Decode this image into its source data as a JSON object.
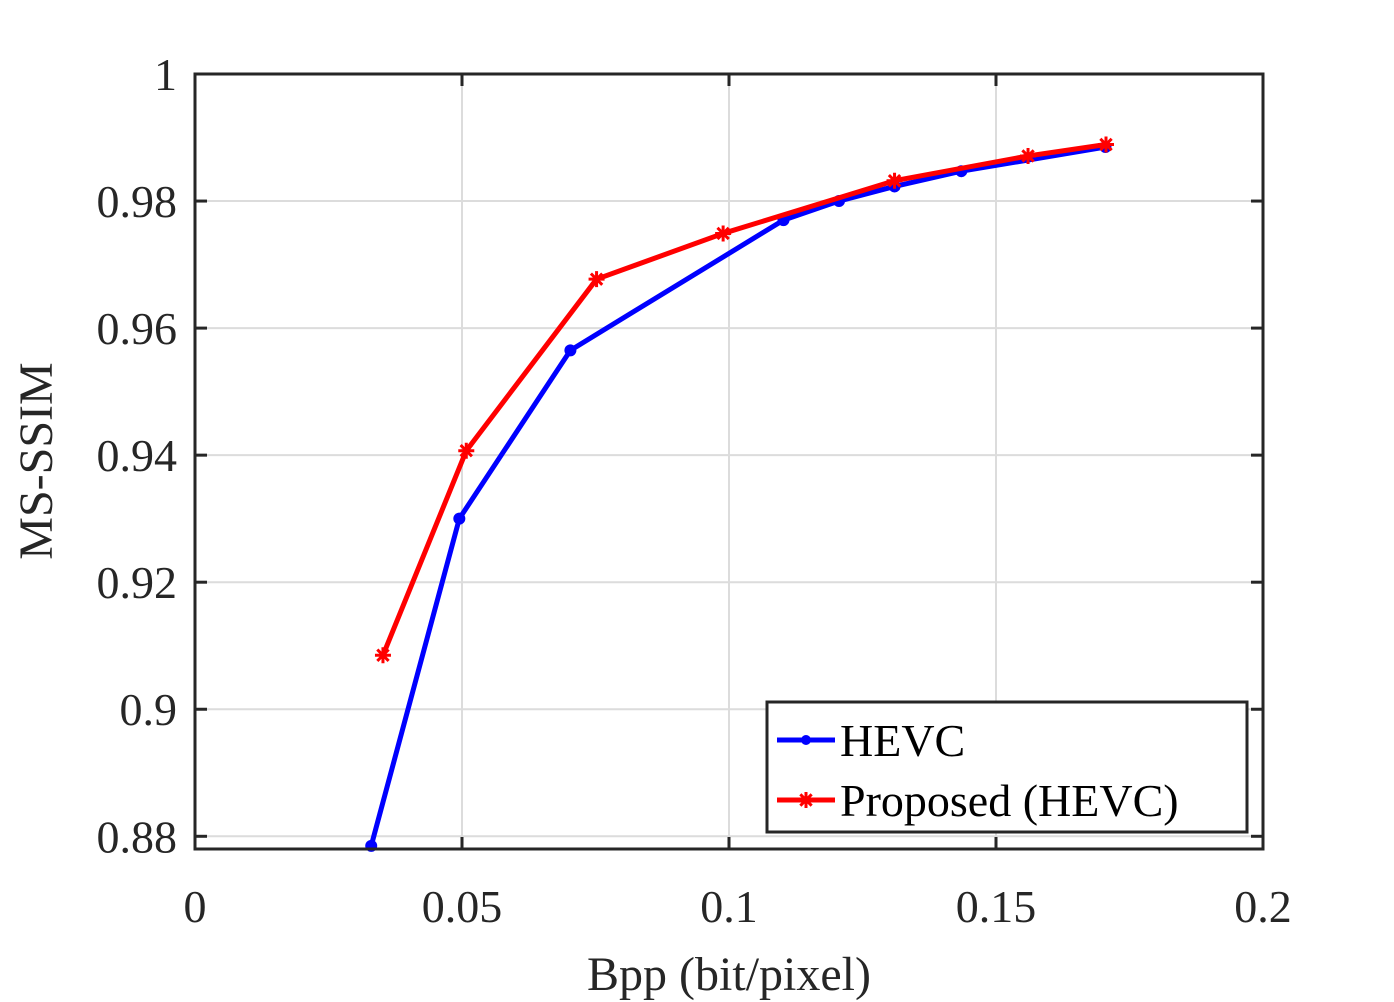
{
  "chart_data": {
    "type": "line",
    "title": "",
    "xlabel": "Bpp (bit/pixel)",
    "ylabel": "MS-SSIM",
    "xlim": [
      0,
      0.2
    ],
    "ylim": [
      0.878,
      1.0
    ],
    "x_ticks": [
      0,
      0.05,
      0.1,
      0.15,
      0.2
    ],
    "x_tick_labels": [
      "0",
      "0.05",
      "0.1",
      "0.15",
      "0.2"
    ],
    "y_ticks": [
      0.88,
      0.9,
      0.92,
      0.94,
      0.96,
      0.98,
      1.0
    ],
    "y_tick_labels": [
      "0.88",
      "0.9",
      "0.92",
      "0.94",
      "0.96",
      "0.98",
      "1"
    ],
    "grid": true,
    "legend_position": "bottom-right",
    "series": [
      {
        "name": "HEVC",
        "color": "#0000ff",
        "marker": "dot",
        "x": [
          0.033,
          0.0495,
          0.0703,
          0.1102,
          0.1206,
          0.131,
          0.1435,
          0.1705
        ],
        "y": [
          0.8785,
          0.93,
          0.9565,
          0.977,
          0.98,
          0.9823,
          0.9847,
          0.9885
        ]
      },
      {
        "name": "Proposed (HEVC)",
        "color": "#ff0000",
        "marker": "star",
        "x": [
          0.0352,
          0.0508,
          0.0752,
          0.0989,
          0.131,
          0.156,
          0.1706
        ],
        "y": [
          0.9085,
          0.9407,
          0.9677,
          0.9749,
          0.9832,
          0.9871,
          0.9889
        ]
      }
    ]
  }
}
